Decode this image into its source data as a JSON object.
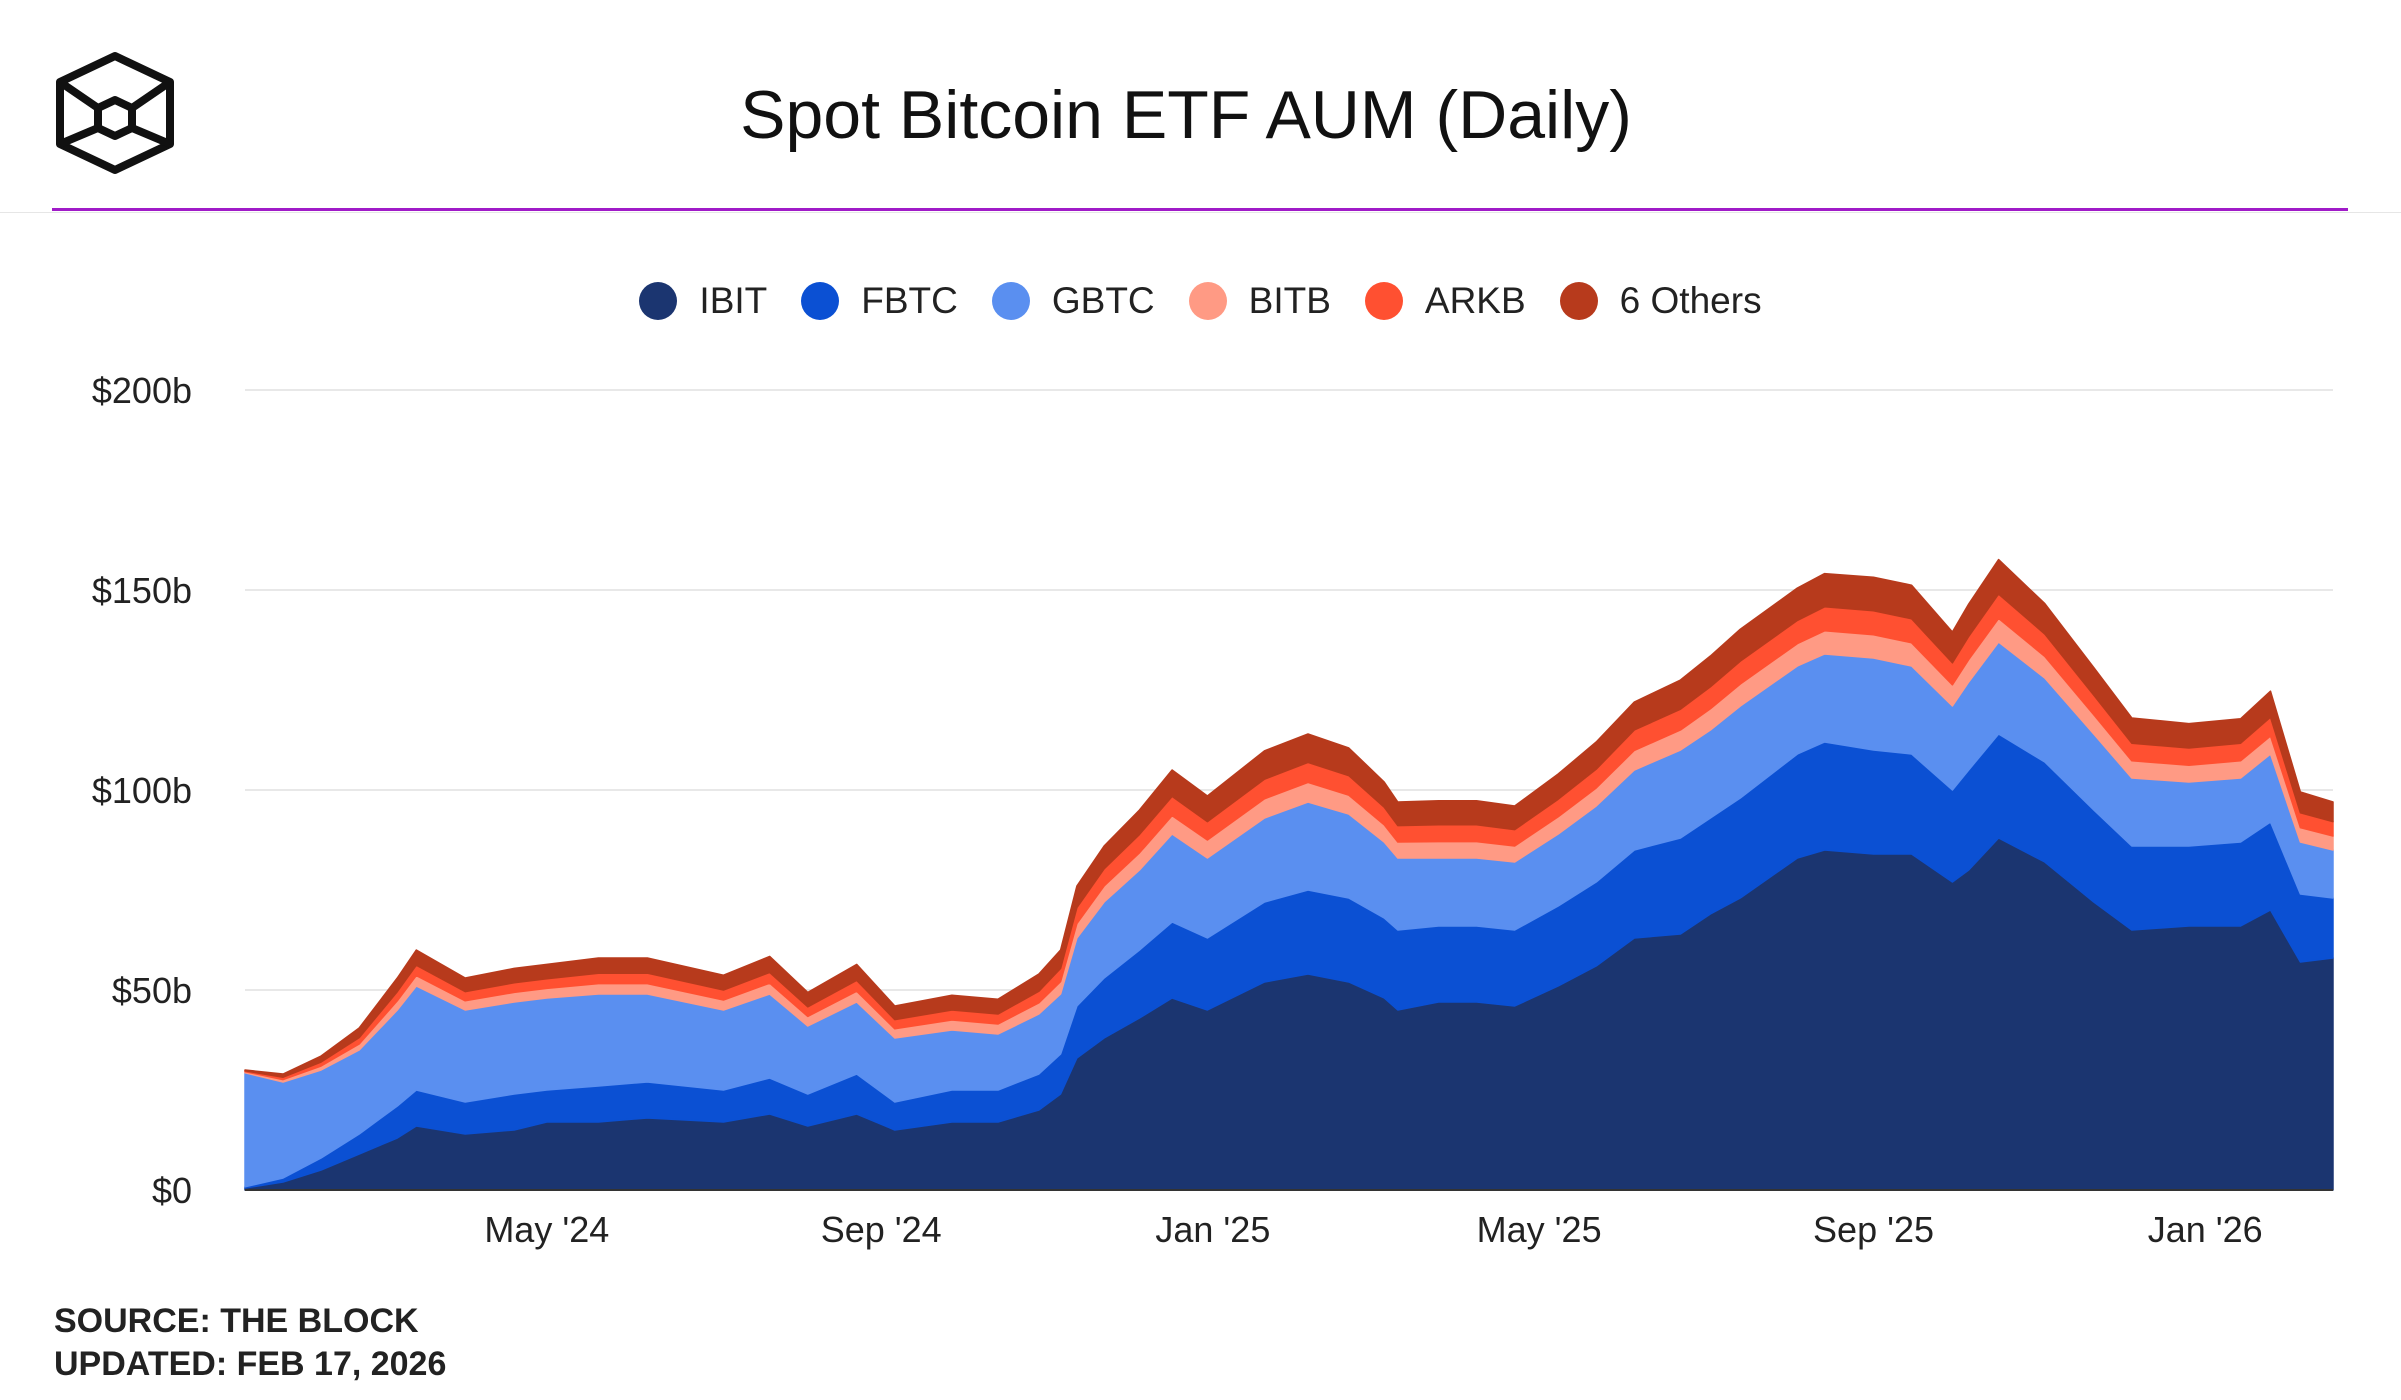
{
  "header": {
    "title": "Spot Bitcoin ETF AUM (Daily)"
  },
  "footer": {
    "source": "SOURCE: THE BLOCK",
    "updated": "UPDATED: FEB 17, 2026"
  },
  "colors": {
    "accent_rule": "#a01bc8",
    "gridline": "#e8e8e8"
  },
  "chart_data": {
    "type": "area",
    "stacked": true,
    "legend_position": "top-center",
    "grid": true,
    "ylim": [
      0,
      200
    ],
    "y_ticks": [
      {
        "value": 0,
        "label": "$0"
      },
      {
        "value": 50,
        "label": "$50b"
      },
      {
        "value": 100,
        "label": "$100b"
      },
      {
        "value": 150,
        "label": "$150b"
      },
      {
        "value": 200,
        "label": "$200b"
      }
    ],
    "x_range": [
      "2024-01-11",
      "2026-02-17"
    ],
    "x_ticks": [
      {
        "date": "2024-05-01",
        "label": "May '24"
      },
      {
        "date": "2024-09-01",
        "label": "Sep '24"
      },
      {
        "date": "2025-01-01",
        "label": "Jan '25"
      },
      {
        "date": "2025-05-01",
        "label": "May '25"
      },
      {
        "date": "2025-09-01",
        "label": "Sep '25"
      },
      {
        "date": "2026-01-01",
        "label": "Jan '26"
      }
    ],
    "x": [
      "2024-01-11",
      "2024-01-25",
      "2024-02-08",
      "2024-02-22",
      "2024-03-07",
      "2024-03-14",
      "2024-04-01",
      "2024-04-19",
      "2024-05-01",
      "2024-05-20",
      "2024-06-07",
      "2024-07-05",
      "2024-07-22",
      "2024-08-05",
      "2024-08-23",
      "2024-09-06",
      "2024-09-27",
      "2024-10-14",
      "2024-10-29",
      "2024-11-06",
      "2024-11-12",
      "2024-11-22",
      "2024-12-05",
      "2024-12-17",
      "2024-12-30",
      "2025-01-20",
      "2025-02-05",
      "2025-02-20",
      "2025-03-05",
      "2025-03-10",
      "2025-03-25",
      "2025-04-08",
      "2025-04-22",
      "2025-05-08",
      "2025-05-22",
      "2025-06-05",
      "2025-06-22",
      "2025-07-03",
      "2025-07-14",
      "2025-08-04",
      "2025-08-14",
      "2025-09-01",
      "2025-09-15",
      "2025-09-30",
      "2025-10-06",
      "2025-10-17",
      "2025-11-03",
      "2025-11-21",
      "2025-12-05",
      "2025-12-26",
      "2026-01-14",
      "2026-01-25",
      "2026-02-05",
      "2026-02-17"
    ],
    "series": [
      {
        "name": "IBIT",
        "color": "#1b3570",
        "values": [
          0.5,
          2,
          5,
          9,
          13,
          16,
          14,
          15,
          17,
          17,
          18,
          17,
          19,
          16,
          19,
          15,
          17,
          17,
          20,
          24,
          33,
          38,
          43,
          48,
          45,
          52,
          54,
          52,
          48,
          45,
          47,
          47,
          46,
          51,
          56,
          63,
          64,
          69,
          73,
          83,
          85,
          84,
          84,
          77,
          80,
          88,
          82,
          72,
          65,
          66,
          66,
          70,
          57,
          58
        ]
      },
      {
        "name": "FBTC",
        "color": "#0b50d3",
        "values": [
          0.3,
          1,
          3,
          5,
          8,
          9,
          8,
          9,
          8,
          9,
          9,
          8,
          9,
          8,
          10,
          7,
          8,
          8,
          9,
          10,
          13,
          15,
          17,
          19,
          18,
          20,
          21,
          21,
          20,
          20,
          19,
          19,
          19,
          20,
          21,
          22,
          24,
          24,
          25,
          26,
          27,
          26,
          25,
          23,
          25,
          26,
          25,
          23,
          21,
          20,
          21,
          22,
          17,
          15
        ]
      },
      {
        "name": "GBTC",
        "color": "#5a8ff0",
        "values": [
          28.5,
          24,
          22,
          21,
          24,
          26,
          23,
          23,
          23,
          23,
          22,
          20,
          21,
          17,
          18,
          16,
          15,
          14,
          15,
          15,
          17,
          19,
          20,
          22,
          20,
          21,
          22,
          21,
          19,
          18,
          17,
          17,
          17,
          18,
          19,
          20,
          22,
          22,
          23,
          22,
          22,
          23,
          22,
          21,
          22,
          23,
          21,
          19,
          17,
          16,
          16,
          17,
          13,
          12
        ]
      },
      {
        "name": "BITB",
        "color": "#ff9a84",
        "values": [
          0.3,
          0.6,
          1,
          1.5,
          2.3,
          2.6,
          2.3,
          2.4,
          2.4,
          2.6,
          2.6,
          2.5,
          2.7,
          2.4,
          2.7,
          2.3,
          2.5,
          2.5,
          2.8,
          3.1,
          3.6,
          4,
          4.3,
          4.6,
          4.5,
          4.8,
          4.9,
          4.7,
          4.3,
          4,
          4.1,
          4.1,
          4,
          4.3,
          4.5,
          4.9,
          5,
          5.3,
          5.5,
          5.6,
          5.8,
          5.8,
          5.8,
          5.3,
          5.6,
          5.9,
          5.4,
          4.8,
          4.3,
          4.2,
          4.3,
          4.5,
          3.6,
          3.5
        ]
      },
      {
        "name": "ARKB",
        "color": "#ff5031",
        "values": [
          0.2,
          0.6,
          1,
          1.6,
          2.3,
          2.6,
          2.3,
          2.4,
          2.4,
          2.6,
          2.6,
          2.5,
          2.7,
          2.4,
          2.7,
          2.3,
          2.5,
          2.5,
          2.9,
          3.3,
          4,
          4.3,
          4.6,
          4.8,
          4.6,
          4.9,
          5,
          4.9,
          4.4,
          4.1,
          4.2,
          4.2,
          4.1,
          4.4,
          4.7,
          5.1,
          5.2,
          5.5,
          5.7,
          5.8,
          6,
          6,
          6,
          5.5,
          5.8,
          6.1,
          5.6,
          4.9,
          4.4,
          4.3,
          4.4,
          4.7,
          3.7,
          3.6
        ]
      },
      {
        "name": "6 Others",
        "color": "#b73a1c",
        "values": [
          0.2,
          0.8,
          1.5,
          2.4,
          3.4,
          3.8,
          3.4,
          3.6,
          3.6,
          3.8,
          3.8,
          3.7,
          4,
          3.6,
          4,
          3.4,
          3.7,
          3.7,
          4.3,
          4.6,
          5.4,
          5.7,
          6.1,
          6.6,
          6.4,
          7.1,
          7.1,
          6.9,
          6.3,
          5.9,
          6,
          6,
          5.9,
          6.3,
          6.8,
          7,
          7.3,
          7.7,
          8,
          8.1,
          8.3,
          8.4,
          8.4,
          7.7,
          8.1,
          8.6,
          7.6,
          6.9,
          6.3,
          6.1,
          6.1,
          6.5,
          5.2,
          4.9
        ]
      }
    ]
  }
}
